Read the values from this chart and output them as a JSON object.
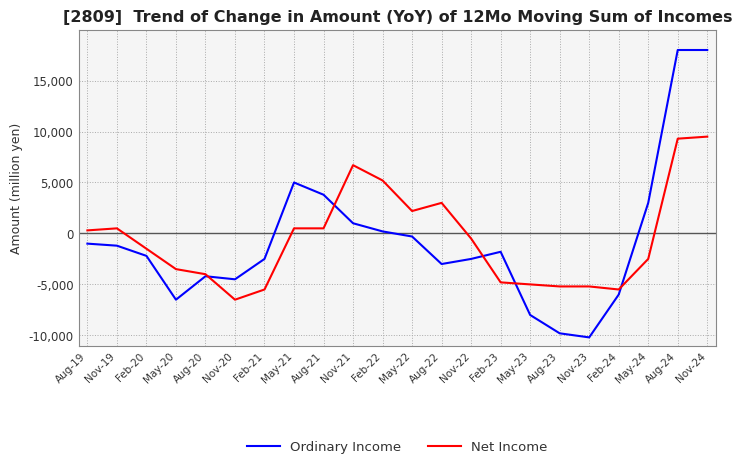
{
  "title": "[2809]  Trend of Change in Amount (YoY) of 12Mo Moving Sum of Incomes",
  "ylabel": "Amount (million yen)",
  "ylim": [
    -11000,
    20000
  ],
  "yticks": [
    -10000,
    -5000,
    0,
    5000,
    10000,
    15000
  ],
  "x_labels": [
    "Aug-19",
    "Nov-19",
    "Feb-20",
    "May-20",
    "Aug-20",
    "Nov-20",
    "Feb-21",
    "May-21",
    "Aug-21",
    "Nov-21",
    "Feb-22",
    "May-22",
    "Aug-22",
    "Nov-22",
    "Feb-23",
    "May-23",
    "Aug-23",
    "Nov-23",
    "Feb-24",
    "May-24",
    "Aug-24",
    "Nov-24"
  ],
  "ordinary_income": [
    -1000,
    -1200,
    -2200,
    -6500,
    -4200,
    -4500,
    -2500,
    5000,
    3800,
    1000,
    200,
    -300,
    -3000,
    -2500,
    -1800,
    -8000,
    -9800,
    -10200,
    -6000,
    3000,
    18000,
    18000
  ],
  "net_income": [
    300,
    500,
    -1500,
    -3500,
    -4000,
    -6500,
    -5500,
    500,
    500,
    6700,
    5200,
    2200,
    3000,
    -500,
    -4800,
    -5000,
    -5200,
    -5200,
    -5500,
    -2500,
    9300,
    9500
  ],
  "ordinary_income_color": "#0000FF",
  "net_income_color": "#FF0000",
  "background_color": "#FFFFFF",
  "plot_bg_color": "#F5F5F5",
  "grid_color": "#AAAAAA",
  "zero_line_color": "#555555",
  "title_color": "#222222",
  "line_width": 1.5
}
